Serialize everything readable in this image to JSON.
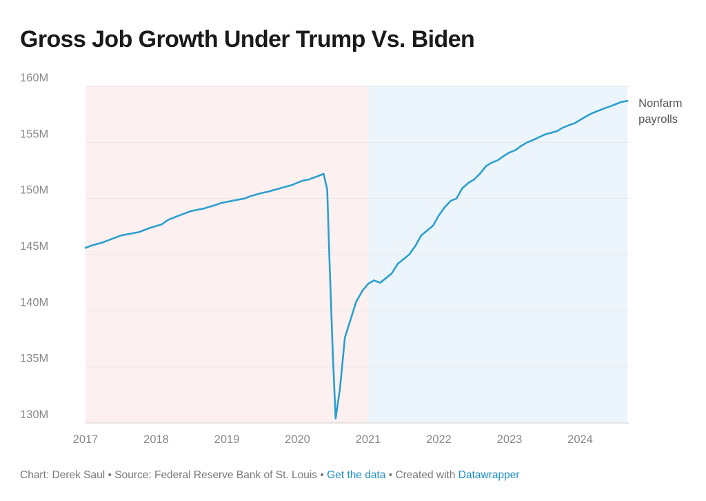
{
  "title": "Gross Job Growth Under Trump Vs. Biden",
  "footer": {
    "credit": "Chart: Derek Saul",
    "sep1": " • ",
    "source": "Source: Federal Reserve Bank of St. Louis",
    "sep2": " • ",
    "get_data": "Get the data",
    "sep3": " • ",
    "created": "Created with ",
    "tool": "Datawrapper"
  },
  "colors": {
    "line": "#2a9fd0",
    "trump_shade": "#fdf0f0",
    "biden_shade": "#ecf5fc",
    "grid": "#e6e6e6",
    "tick": "#888888",
    "label": "#555555"
  },
  "chart_data": {
    "type": "line",
    "title": "Gross Job Growth Under Trump Vs. Biden",
    "xlabel": "",
    "ylabel": "",
    "xlim": [
      2017.0,
      2024.75
    ],
    "ylim": [
      130,
      160
    ],
    "y_ticks": [
      130,
      135,
      140,
      145,
      150,
      155,
      160
    ],
    "y_tick_labels": [
      "130M",
      "135M",
      "140M",
      "145M",
      "150M",
      "155M",
      "160M"
    ],
    "x_ticks": [
      2017,
      2018,
      2019,
      2020,
      2021,
      2022,
      2023,
      2024
    ],
    "x_tick_labels": [
      "2017",
      "2018",
      "2019",
      "2020",
      "2021",
      "2022",
      "2023",
      "2024"
    ],
    "grid": true,
    "shaded_regions": [
      {
        "from": 2017.0,
        "to": 2021.0,
        "color": "#fdf0f0"
      },
      {
        "from": 2021.0,
        "to": 2024.67,
        "color": "#ecf5fc"
      }
    ],
    "series": [
      {
        "name": "Nonfarm payrolls",
        "label_lines": [
          "Nonfarm",
          "payrolls"
        ],
        "color": "#2a9fd0",
        "points": [
          [
            2017.0,
            145.6
          ],
          [
            2017.08,
            145.8
          ],
          [
            2017.25,
            146.1
          ],
          [
            2017.33,
            146.3
          ],
          [
            2017.5,
            146.7
          ],
          [
            2017.58,
            146.8
          ],
          [
            2017.75,
            147.0
          ],
          [
            2017.92,
            147.4
          ],
          [
            2018.08,
            147.7
          ],
          [
            2018.17,
            148.1
          ],
          [
            2018.33,
            148.5
          ],
          [
            2018.5,
            148.9
          ],
          [
            2018.67,
            149.1
          ],
          [
            2018.83,
            149.4
          ],
          [
            2018.92,
            149.6
          ],
          [
            2019.08,
            149.8
          ],
          [
            2019.25,
            150.0
          ],
          [
            2019.33,
            150.2
          ],
          [
            2019.5,
            150.5
          ],
          [
            2019.58,
            150.6
          ],
          [
            2019.75,
            150.9
          ],
          [
            2019.92,
            151.2
          ],
          [
            2020.08,
            151.6
          ],
          [
            2020.17,
            151.7
          ],
          [
            2020.2,
            151.8
          ],
          [
            2020.25,
            151.9
          ],
          [
            2020.33,
            152.1
          ],
          [
            2020.37,
            152.2
          ],
          [
            2020.42,
            150.8
          ],
          [
            2020.45,
            145.0
          ],
          [
            2020.5,
            136.0
          ],
          [
            2020.54,
            130.4
          ],
          [
            2020.6,
            133.0
          ],
          [
            2020.67,
            137.6
          ],
          [
            2020.75,
            139.2
          ],
          [
            2020.83,
            140.8
          ],
          [
            2020.92,
            141.8
          ],
          [
            2021.0,
            142.4
          ],
          [
            2021.08,
            142.7
          ],
          [
            2021.17,
            142.5
          ],
          [
            2021.33,
            143.3
          ],
          [
            2021.42,
            144.2
          ],
          [
            2021.5,
            144.6
          ],
          [
            2021.58,
            145.0
          ],
          [
            2021.67,
            145.8
          ],
          [
            2021.75,
            146.7
          ],
          [
            2021.92,
            147.6
          ],
          [
            2022.0,
            148.5
          ],
          [
            2022.08,
            149.2
          ],
          [
            2022.17,
            149.8
          ],
          [
            2022.25,
            150.0
          ],
          [
            2022.33,
            150.9
          ],
          [
            2022.42,
            151.4
          ],
          [
            2022.5,
            151.7
          ],
          [
            2022.58,
            152.2
          ],
          [
            2022.67,
            152.9
          ],
          [
            2022.75,
            153.2
          ],
          [
            2022.83,
            153.4
          ],
          [
            2022.92,
            153.8
          ],
          [
            2023.0,
            154.1
          ],
          [
            2023.08,
            154.3
          ],
          [
            2023.17,
            154.7
          ],
          [
            2023.25,
            155.0
          ],
          [
            2023.33,
            155.2
          ],
          [
            2023.5,
            155.7
          ],
          [
            2023.67,
            156.0
          ],
          [
            2023.75,
            156.3
          ],
          [
            2023.83,
            156.5
          ],
          [
            2023.92,
            156.7
          ],
          [
            2024.0,
            157.0
          ],
          [
            2024.08,
            157.3
          ],
          [
            2024.17,
            157.6
          ],
          [
            2024.25,
            157.8
          ],
          [
            2024.33,
            158.0
          ],
          [
            2024.42,
            158.2
          ],
          [
            2024.5,
            158.4
          ],
          [
            2024.58,
            158.6
          ],
          [
            2024.67,
            158.7
          ]
        ]
      }
    ]
  }
}
